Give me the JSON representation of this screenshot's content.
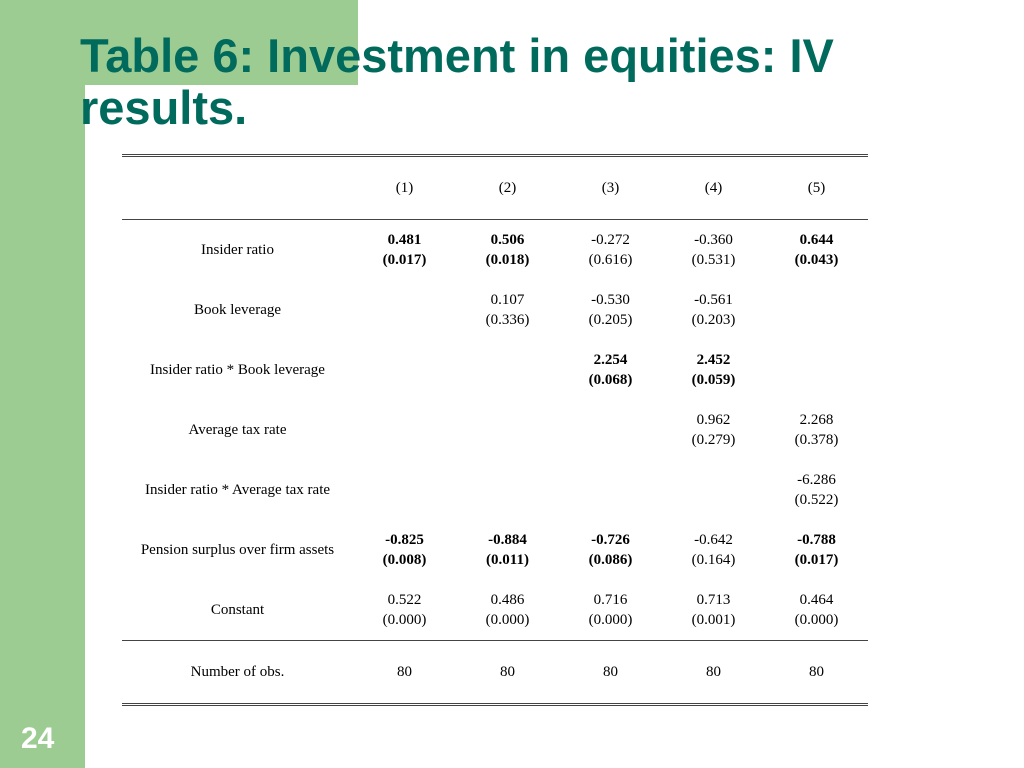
{
  "slide": {
    "title": "Table 6: Investment in equities: IV results.",
    "page_number": "24"
  },
  "table": {
    "columns": [
      "(1)",
      "(2)",
      "(3)",
      "(4)",
      "(5)"
    ],
    "rows": [
      {
        "label": "Insider ratio",
        "cells": [
          {
            "coef": "0.481",
            "se": "(0.017)",
            "bold": true
          },
          {
            "coef": "0.506",
            "se": "(0.018)",
            "bold": true
          },
          {
            "coef": "-0.272",
            "se": "(0.616)",
            "bold": false
          },
          {
            "coef": "-0.360",
            "se": "(0.531)",
            "bold": false
          },
          {
            "coef": "0.644",
            "se": "(0.043)",
            "bold": true
          }
        ]
      },
      {
        "label": "Book leverage",
        "cells": [
          null,
          {
            "coef": "0.107",
            "se": "(0.336)",
            "bold": false
          },
          {
            "coef": "-0.530",
            "se": "(0.205)",
            "bold": false
          },
          {
            "coef": "-0.561",
            "se": "(0.203)",
            "bold": false
          },
          null
        ]
      },
      {
        "label": "Insider ratio * Book leverage",
        "cells": [
          null,
          null,
          {
            "coef": "2.254",
            "se": "(0.068)",
            "bold": true
          },
          {
            "coef": "2.452",
            "se": "(0.059)",
            "bold": true
          },
          null
        ]
      },
      {
        "label": "Average tax rate",
        "cells": [
          null,
          null,
          null,
          {
            "coef": "0.962",
            "se": "(0.279)",
            "bold": false
          },
          {
            "coef": "2.268",
            "se": "(0.378)",
            "bold": false
          }
        ]
      },
      {
        "label": "Insider ratio * Average tax rate",
        "cells": [
          null,
          null,
          null,
          null,
          {
            "coef": "-6.286",
            "se": "(0.522)",
            "bold": false
          }
        ]
      },
      {
        "label": "Pension surplus over firm assets",
        "cells": [
          {
            "coef": "-0.825",
            "se": "(0.008)",
            "bold": true
          },
          {
            "coef": "-0.884",
            "se": "(0.011)",
            "bold": true
          },
          {
            "coef": "-0.726",
            "se": "(0.086)",
            "bold": true
          },
          {
            "coef": "-0.642",
            "se": "(0.164)",
            "bold": false
          },
          {
            "coef": "-0.788",
            "se": "(0.017)",
            "bold": true
          }
        ]
      },
      {
        "label": "Constant",
        "cells": [
          {
            "coef": "0.522",
            "se": "(0.000)",
            "bold": false
          },
          {
            "coef": "0.486",
            "se": "(0.000)",
            "bold": false
          },
          {
            "coef": "0.716",
            "se": "(0.000)",
            "bold": false
          },
          {
            "coef": "0.713",
            "se": "(0.001)",
            "bold": false
          },
          {
            "coef": "0.464",
            "se": "(0.000)",
            "bold": false
          }
        ]
      }
    ],
    "footer": {
      "label": "Number of obs.",
      "values": [
        "80",
        "80",
        "80",
        "80",
        "80"
      ]
    }
  },
  "colors": {
    "accent_band": "#9dcc93",
    "title": "#006a5c"
  }
}
